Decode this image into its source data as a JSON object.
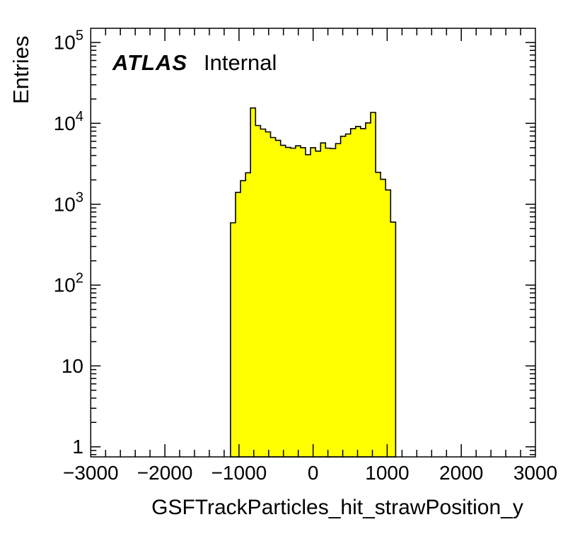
{
  "annotations": {
    "experiment": "ATLAS",
    "status_label": "Internal"
  },
  "y_axis": {
    "title": "Entries",
    "scale": "log",
    "min": 0.75,
    "max": 150000,
    "tick_labels": [
      "1",
      "10",
      "10^{2}",
      "10^{3}",
      "10^{4}",
      "10^{5}"
    ]
  },
  "x_axis": {
    "title": "GSFTrackParticles_hit_strawPosition_y",
    "min": -3000,
    "max": 3000,
    "major_tick_step": 1000,
    "minor_tick_step": 200,
    "tick_labels": [
      "−3000",
      "−2000",
      "−1000",
      "0",
      "1000",
      "2000",
      "3000"
    ]
  },
  "chart_data": {
    "type": "bar",
    "title": "",
    "xlabel": "GSFTrackParticles_hit_strawPosition_y",
    "ylabel": "Entries",
    "yscale": "log",
    "xlim": [
      -3000,
      3000
    ],
    "ylim": [
      0.75,
      150000
    ],
    "grid": false,
    "legend": false,
    "n_bins": 33,
    "bin_start": -1113.75,
    "bin_width": 67.5,
    "values": [
      590,
      1400,
      1960,
      2450,
      15500,
      9400,
      8510,
      7850,
      6680,
      6170,
      5360,
      5050,
      4940,
      5280,
      5010,
      4100,
      5010,
      4540,
      5730,
      4940,
      4890,
      5630,
      6920,
      7390,
      8630,
      9160,
      8630,
      10140,
      13650,
      2480,
      2030,
      1500,
      600
    ],
    "fill_color": "#ffff00",
    "line_color": "#000000",
    "background_color": "#ffffff"
  }
}
